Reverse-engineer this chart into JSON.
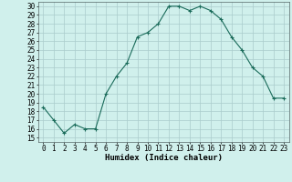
{
  "x": [
    0,
    1,
    2,
    3,
    4,
    5,
    6,
    7,
    8,
    9,
    10,
    11,
    12,
    13,
    14,
    15,
    16,
    17,
    18,
    19,
    20,
    21,
    22,
    23
  ],
  "y": [
    18.5,
    17.0,
    15.5,
    16.5,
    16.0,
    16.0,
    20.0,
    22.0,
    23.5,
    26.5,
    27.0,
    28.0,
    30.0,
    30.0,
    29.5,
    30.0,
    29.5,
    28.5,
    26.5,
    25.0,
    23.0,
    22.0,
    19.5,
    19.5
  ],
  "xlabel": "Humidex (Indice chaleur)",
  "ylabel": "",
  "ylim": [
    14.5,
    30.5
  ],
  "xlim": [
    -0.5,
    23.5
  ],
  "yticks": [
    15,
    16,
    17,
    18,
    19,
    20,
    21,
    22,
    23,
    24,
    25,
    26,
    27,
    28,
    29,
    30
  ],
  "xticks": [
    0,
    1,
    2,
    3,
    4,
    5,
    6,
    7,
    8,
    9,
    10,
    11,
    12,
    13,
    14,
    15,
    16,
    17,
    18,
    19,
    20,
    21,
    22,
    23
  ],
  "line_color": "#1a6b5a",
  "marker": "+",
  "bg_color": "#d0f0ec",
  "grid_color": "#aacccc",
  "label_fontsize": 6.5,
  "tick_fontsize": 5.5
}
